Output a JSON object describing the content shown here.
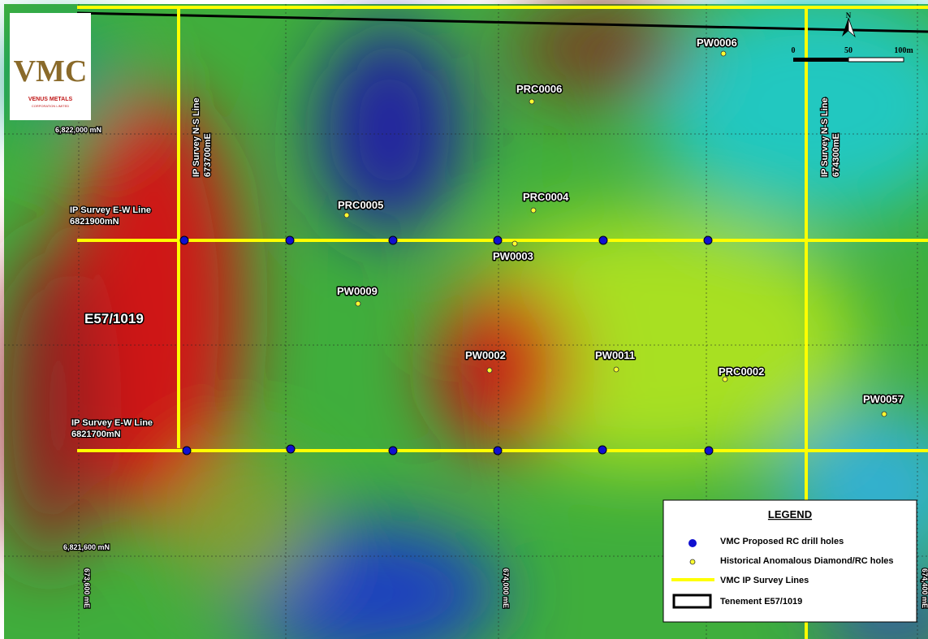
{
  "logo": {
    "mark": "VMC",
    "company": "VENUS METALS",
    "subtitle": "CORPORATION LIMITED"
  },
  "grid_labels": {
    "northings": [
      "6,822,000 mN",
      "6,821,600 mN"
    ],
    "eastings": [
      "673,600 mE",
      "674,000 mE",
      "674,400 mE"
    ]
  },
  "survey_lines": [
    {
      "label": "IP Survey N-S Line",
      "coord": "673700mE"
    },
    {
      "label": "IP Survey N-S Line",
      "coord": "674300mE"
    },
    {
      "label": "IP Survey E-W Line",
      "coord": "6821900mN"
    },
    {
      "label": "IP Survey E-W Line",
      "coord": "6821700mN"
    }
  ],
  "tenement": "E57/1019",
  "holes": [
    "PW0006",
    "PRC0006",
    "PRC0005",
    "PRC0004",
    "PW0003",
    "PW0009",
    "PW0002",
    "PW0011",
    "PRC0002",
    "PW0057"
  ],
  "scale": {
    "labels": [
      "0",
      "50",
      "100m"
    ]
  },
  "north": "N",
  "legend": {
    "title": "LEGEND",
    "items": [
      "VMC Proposed RC drill holes",
      "Historical Anomalous Diamond/RC holes",
      "VMC IP Survey Lines",
      "Tenement E57/1019"
    ]
  }
}
